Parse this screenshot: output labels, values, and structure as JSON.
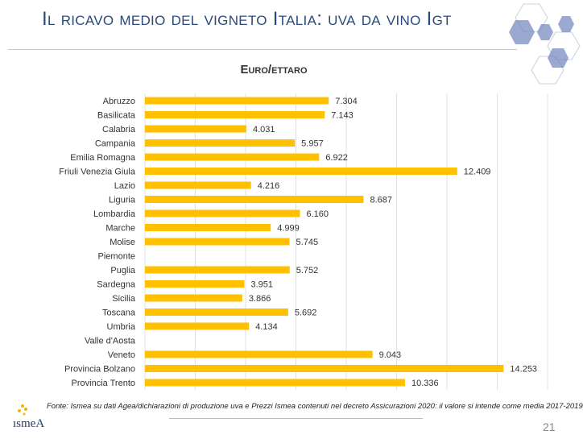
{
  "header": {
    "title": "Il ricavo medio del vigneto Italia: uva da vino Igt"
  },
  "footer": {
    "source": "Fonte: Ismea su dati Agea/dichiarazioni di produzione uva  e Prezzi Ismea contenuti nel decreto Assicurazioni  2020: il valore si intende come media 2017-2019",
    "page_number": "21",
    "logo": "ismea"
  },
  "colors": {
    "bar": "#ffc000",
    "title": "#2a4a7a",
    "rule": "#f2c94c"
  },
  "chart_data": {
    "type": "bar",
    "orientation": "horizontal",
    "title": "Euro/ettaro",
    "xlim": [
      0,
      16000
    ],
    "grid": true,
    "categories": [
      "Abruzzo",
      "Basilicata",
      "Calabria",
      "Campania",
      "Emilia Romagna",
      "Friuli Venezia Giula",
      "Lazio",
      "Liguria",
      "Lombardia",
      "Marche",
      "Molise",
      "Piemonte",
      "Puglia",
      "Sardegna",
      "Sicilia",
      "Toscana",
      "Umbria",
      "Valle d'Aosta",
      "Veneto",
      "Provincia Bolzano",
      "Provincia Trento"
    ],
    "values": [
      7304,
      7143,
      4031,
      5957,
      6922,
      12409,
      4216,
      8687,
      6160,
      4999,
      5745,
      null,
      5752,
      3951,
      3866,
      5692,
      4134,
      null,
      9043,
      14253,
      10336
    ],
    "labels": [
      "7.304",
      "7.143",
      "4.031",
      "5.957",
      "6.922",
      "12.409",
      "4.216",
      "8.687",
      "6.160",
      "4.999",
      "5.745",
      "",
      "5.752",
      "3.951",
      "3.866",
      "5.692",
      "4.134",
      "",
      "9.043",
      "14.253",
      "10.336"
    ]
  }
}
